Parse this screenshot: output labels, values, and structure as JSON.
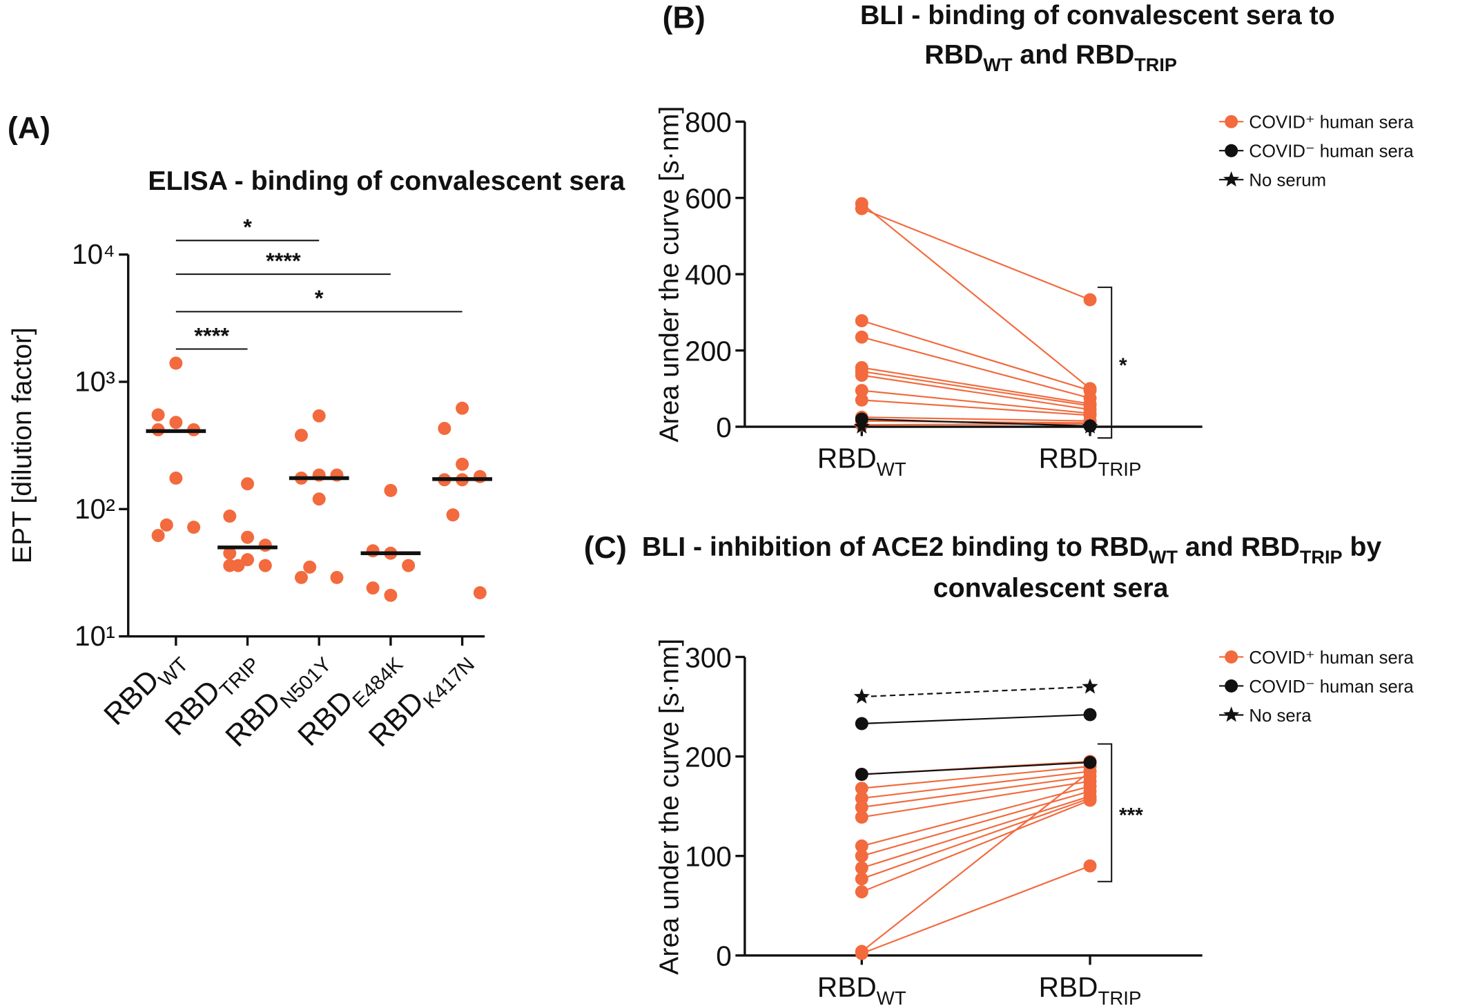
{
  "chart_data": [
    {
      "type": "strip",
      "panel": "(A)",
      "title": "ELISA - binding of convalescent sera",
      "y_label": "EPT [dilution factor]",
      "categories": [
        [
          "RBD",
          "WT"
        ],
        [
          "RBD",
          "TRIP"
        ],
        [
          "RBD",
          "N501Y"
        ],
        [
          "RBD",
          "E484K"
        ],
        [
          "RBD",
          "K417N"
        ]
      ],
      "values": [
        [
          1400,
          550,
          480,
          420,
          420,
          175,
          75,
          72,
          62
        ],
        [
          158,
          88,
          60,
          52,
          45,
          40,
          36,
          36,
          36
        ],
        [
          540,
          380,
          185,
          185,
          175,
          120,
          35,
          29,
          29
        ],
        [
          140,
          47,
          45,
          36,
          24,
          21
        ],
        [
          620,
          430,
          225,
          180,
          170,
          170,
          90,
          22
        ]
      ],
      "medians": [
        410,
        50,
        175,
        45,
        172
      ],
      "color": "#f26a3d",
      "log_y": true,
      "ylim": [
        10,
        10000
      ],
      "yticks": [
        {
          "value": 10,
          "label": "10¹"
        },
        {
          "value": 100,
          "label": "10²"
        },
        {
          "value": 1000,
          "label": "10³"
        },
        {
          "value": 10000,
          "label": "10⁴"
        }
      ],
      "comparisons": [
        "*",
        "****",
        "*",
        "****"
      ]
    },
    {
      "type": "line",
      "panel": "(B)",
      "title": [
        "BLI - binding of convalescent sera to",
        "RBD",
        "WT",
        "and RBD",
        "TRIP"
      ],
      "y_label": "Area under the curve [s·nm]",
      "categories": [
        [
          "RBD",
          "WT"
        ],
        [
          "RBD",
          "TRIP"
        ]
      ],
      "ylim": [
        0,
        800
      ],
      "yticks": [
        0,
        200,
        400,
        600,
        800
      ],
      "significance": "*",
      "series": [
        {
          "name": "COVID⁺ human sera",
          "color": "#f26a3d",
          "marker": "circle",
          "values": [
            [
              585,
              100
            ],
            [
              572,
              333
            ],
            [
              278,
              95
            ],
            [
              235,
              75
            ],
            [
              155,
              60
            ],
            [
              145,
              55
            ],
            [
              135,
              45
            ],
            [
              95,
              35
            ],
            [
              70,
              30
            ],
            [
              25,
              15
            ],
            [
              15,
              10
            ],
            [
              5,
              8
            ]
          ]
        },
        {
          "name": "COVID⁻ human sera",
          "color": "#111111",
          "marker": "circle",
          "values": [
            [
              20,
              2
            ]
          ]
        },
        {
          "name": "No serum",
          "color": "#111111",
          "marker": "star",
          "values": [
            [
              0,
              0
            ]
          ]
        }
      ]
    },
    {
      "type": "line",
      "panel": "(C)",
      "title": [
        "BLI - inhibition of ACE2 binding to RBD",
        "WT",
        "and RBD",
        "TRIP",
        "by",
        "convalescent sera"
      ],
      "y_label": "Area under the curve [s·nm]",
      "categories": [
        [
          "RBD",
          "WT"
        ],
        [
          "RBD",
          "TRIP"
        ]
      ],
      "ylim": [
        0,
        300
      ],
      "yticks": [
        0,
        100,
        200,
        300
      ],
      "significance": "***",
      "series": [
        {
          "name": "COVID⁺ human sera",
          "color": "#f26a3d",
          "marker": "circle",
          "values": [
            [
              182,
              195
            ],
            [
              168,
              190
            ],
            [
              158,
              185
            ],
            [
              149,
              180
            ],
            [
              139,
              175
            ],
            [
              110,
              170
            ],
            [
              100,
              165
            ],
            [
              88,
              160
            ],
            [
              77,
              158
            ],
            [
              64,
              156
            ],
            [
              4,
              185
            ],
            [
              2,
              90
            ]
          ]
        },
        {
          "name": "COVID⁻ human sera",
          "color": "#111111",
          "marker": "circle",
          "values": [
            [
              233,
              242
            ],
            [
              182,
              194
            ]
          ]
        },
        {
          "name": "No sera",
          "color": "#111111",
          "marker": "star",
          "line_style": "dashed",
          "values": [
            [
              260,
              270
            ]
          ]
        }
      ]
    }
  ]
}
